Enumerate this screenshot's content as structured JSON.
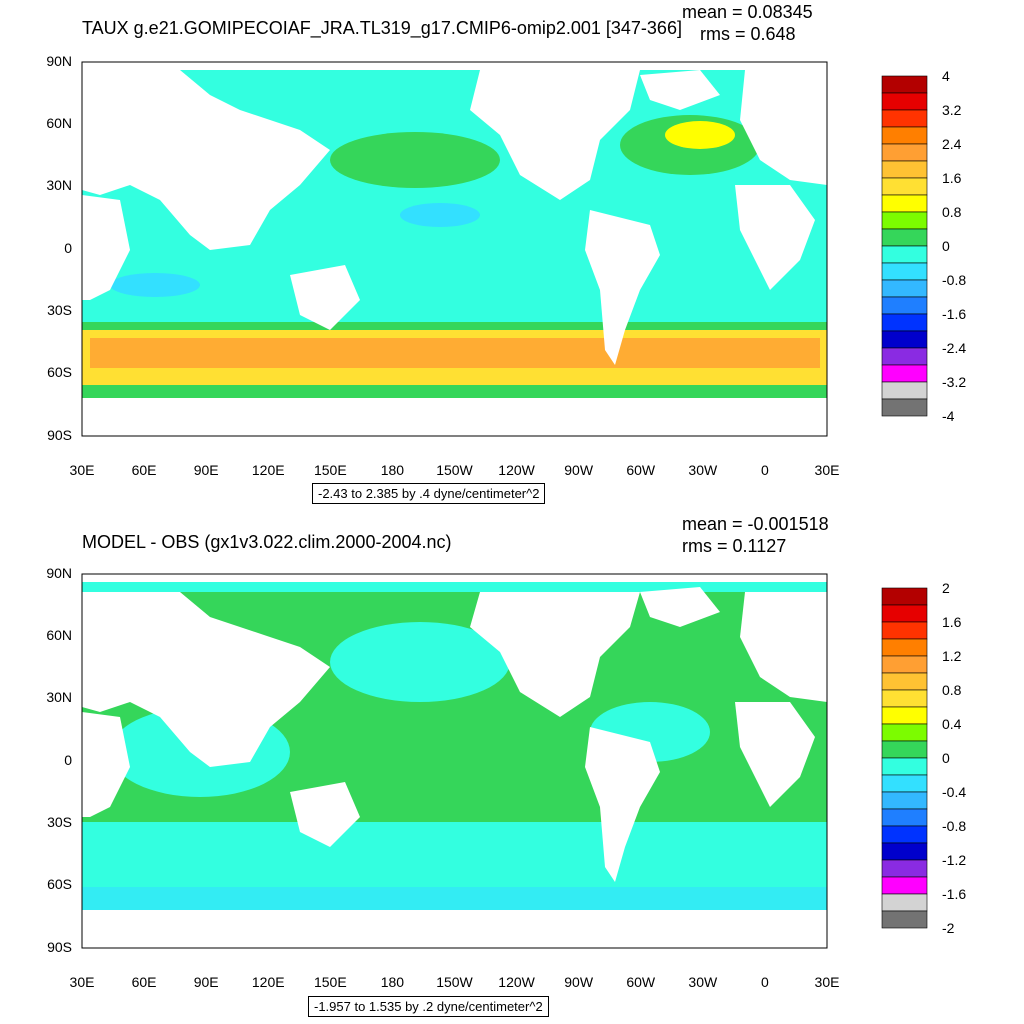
{
  "colors": {
    "ocean_neg": "#33ffe0",
    "ocean_pos": "#35d65a",
    "land": "#ffffff"
  },
  "panels": [
    {
      "title": "TAUX g.e21.GOMIPECOIAF_JRA.TL319_g17.CMIP6-omip2.001 [347-366]",
      "mean": "mean = 0.08345",
      "rms": "rms = 0.648",
      "range": "-2.43 to 2.385 by .4 dyne/centimeter^2",
      "lat_labels": [
        "90N",
        "60N",
        "30N",
        "0",
        "30S",
        "60S",
        "90S"
      ],
      "lon_labels": [
        "30E",
        "60E",
        "90E",
        "120E",
        "150E",
        "180",
        "150W",
        "120W",
        "90W",
        "60W",
        "30W",
        "0",
        "30E"
      ],
      "colorbar": {
        "labels": [
          "4",
          "3.2",
          "2.4",
          "1.6",
          "0.8",
          "0",
          "-0.8",
          "-1.6",
          "-2.4",
          "-3.2",
          "-4"
        ],
        "colors": [
          "#b30000",
          "#e60000",
          "#ff3300",
          "#ff7f00",
          "#ff9f33",
          "#ffc233",
          "#ffe033",
          "#ffff00",
          "#7cfc00",
          "#35d65a",
          "#33ffe0",
          "#33e0ff",
          "#33b8ff",
          "#1f7fff",
          "#0033ff",
          "#0000cc",
          "#8a2be2",
          "#ff00ff",
          "#d3d3d3",
          "#737373"
        ]
      }
    },
    {
      "title": "MODEL - OBS (gx1v3.022.clim.2000-2004.nc)",
      "mean": "mean = -0.001518",
      "rms": "rms = 0.1127",
      "range": "-1.957 to 1.535 by .2 dyne/centimeter^2",
      "lat_labels": [
        "90N",
        "60N",
        "30N",
        "0",
        "30S",
        "60S",
        "90S"
      ],
      "lon_labels": [
        "30E",
        "60E",
        "90E",
        "120E",
        "150E",
        "180",
        "150W",
        "120W",
        "90W",
        "60W",
        "30W",
        "0",
        "30E"
      ],
      "colorbar": {
        "labels": [
          "2",
          "1.6",
          "1.2",
          "0.8",
          "0.4",
          "0",
          "-0.4",
          "-0.8",
          "-1.2",
          "-1.6",
          "-2"
        ],
        "colors": [
          "#b30000",
          "#e60000",
          "#ff3300",
          "#ff7f00",
          "#ff9f33",
          "#ffc233",
          "#ffe033",
          "#ffff00",
          "#7cfc00",
          "#35d65a",
          "#33ffe0",
          "#33e0ff",
          "#33b8ff",
          "#1f7fff",
          "#0033ff",
          "#0000cc",
          "#8a2be2",
          "#ff00ff",
          "#d3d3d3",
          "#737373"
        ]
      }
    }
  ]
}
